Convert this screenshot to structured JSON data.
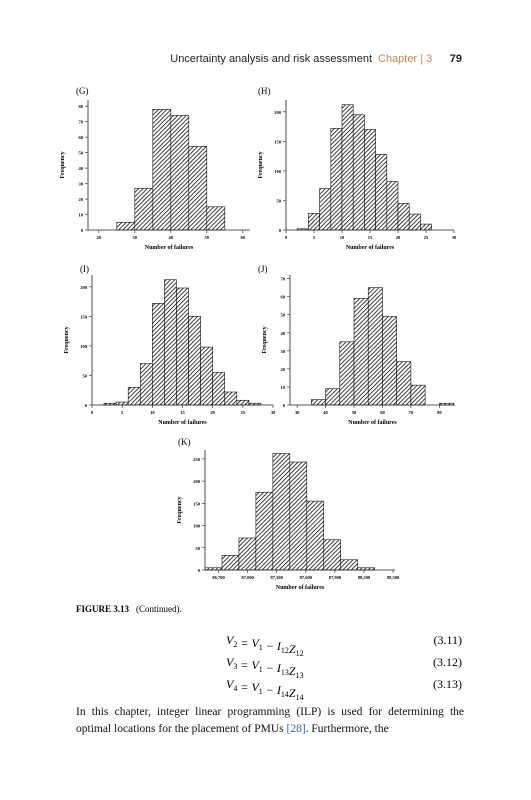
{
  "header": {
    "running_title": "Uncertainty analysis and risk assessment",
    "chapter": "Chapter | 3",
    "page_number": "79"
  },
  "chart_data": [
    {
      "type": "histogram",
      "panel_label": "(G)",
      "xlabel": "Number of failures",
      "ylabel": "Frequency",
      "bins": [
        25,
        30,
        35,
        40,
        45,
        50,
        55
      ],
      "counts": [
        5,
        27,
        78,
        74,
        54,
        15
      ],
      "xlim": [
        17,
        62
      ],
      "xticks": [
        20,
        30,
        40,
        50,
        60
      ],
      "ylim": [
        0,
        84
      ],
      "yticks": [
        0,
        10,
        20,
        30,
        40,
        50,
        60,
        70,
        80
      ]
    },
    {
      "type": "histogram",
      "panel_label": "(H)",
      "xlabel": "Number of failures",
      "ylabel": "Frequency",
      "bins": [
        2,
        4,
        6,
        8,
        10,
        12,
        14,
        16,
        18,
        20,
        22,
        24,
        26
      ],
      "counts": [
        2,
        28,
        70,
        172,
        212,
        195,
        170,
        128,
        82,
        45,
        27,
        10
      ],
      "xlim": [
        0,
        30
      ],
      "xticks": [
        0,
        5,
        10,
        15,
        20,
        25,
        30
      ],
      "ylim": [
        0,
        220
      ],
      "yticks": [
        0,
        50,
        100,
        150,
        200
      ]
    },
    {
      "type": "histogram",
      "panel_label": "(I)",
      "xlabel": "Number of failures",
      "ylabel": "Frequency",
      "bins": [
        2,
        4,
        6,
        8,
        10,
        12,
        14,
        16,
        18,
        20,
        22,
        24,
        26,
        28
      ],
      "counts": [
        3,
        5,
        30,
        70,
        172,
        212,
        198,
        150,
        98,
        55,
        22,
        8,
        3
      ],
      "xlim": [
        0,
        30
      ],
      "xticks": [
        0,
        5,
        10,
        15,
        20,
        25,
        30
      ],
      "ylim": [
        0,
        220
      ],
      "yticks": [
        0,
        50,
        100,
        150,
        200
      ]
    },
    {
      "type": "histogram",
      "panel_label": "(J)",
      "xlabel": "Number of failures",
      "ylabel": "Frequency",
      "bins": [
        35,
        40,
        45,
        50,
        55,
        60,
        65,
        70,
        75,
        80,
        85
      ],
      "counts": [
        3,
        9,
        35,
        59,
        65,
        49,
        24,
        11,
        0,
        1
      ],
      "xlim": [
        27.5,
        85.5
      ],
      "xticks": [
        30,
        40,
        50,
        60,
        70,
        80
      ],
      "ylim": [
        0,
        72
      ],
      "yticks": [
        0,
        10,
        20,
        30,
        40,
        50,
        60,
        70
      ]
    },
    {
      "type": "histogram",
      "panel_label": "(K)",
      "xlabel": "Number of failures",
      "ylabel": "Frequency",
      "bins": [
        86560,
        86735,
        86910,
        87085,
        87260,
        87435,
        87610,
        87785,
        87960,
        88135,
        88310
      ],
      "counts": [
        5,
        33,
        72,
        175,
        262,
        243,
        155,
        68,
        23,
        5
      ],
      "xlim": [
        86560,
        88520
      ],
      "xticks": [
        {
          "value": 86700,
          "label": "86,700"
        },
        {
          "value": 87000,
          "label": "87,000"
        },
        {
          "value": 87300,
          "label": "87,300"
        },
        {
          "value": 87600,
          "label": "87,600"
        },
        {
          "value": 87900,
          "label": "87,900"
        },
        {
          "value": 88200,
          "label": "88,200"
        },
        {
          "value": 88500,
          "label": "88,500"
        }
      ],
      "ylim": [
        0,
        270
      ],
      "yticks": [
        0,
        50,
        100,
        150,
        200,
        250
      ]
    }
  ],
  "caption": {
    "label": "FIGURE 3.13",
    "text": "(Continued)."
  },
  "equations": [
    {
      "segments": [
        {
          "main": "V",
          "sub": "2"
        },
        {
          "main": " = V",
          "sub": "1"
        },
        {
          "main": " − I",
          "sub": "12"
        },
        {
          "main": "Z",
          "sub": "12"
        }
      ],
      "number": "(3.11)"
    },
    {
      "segments": [
        {
          "main": "V",
          "sub": "3"
        },
        {
          "main": " = V",
          "sub": "1"
        },
        {
          "main": " − I",
          "sub": "13"
        },
        {
          "main": "Z",
          "sub": "13"
        }
      ],
      "number": "(3.12)"
    },
    {
      "segments": [
        {
          "main": "V",
          "sub": "4"
        },
        {
          "main": " = V",
          "sub": "1"
        },
        {
          "main": " − I",
          "sub": "14"
        },
        {
          "main": "Z",
          "sub": "14"
        }
      ],
      "number": "(3.13)"
    }
  ],
  "paragraph": {
    "before": "In this chapter, integer linear programming (ILP) is used for determining the optimal locations for the placement of PMUs ",
    "citation": "[28]",
    "after": ". Furthermore, the"
  }
}
